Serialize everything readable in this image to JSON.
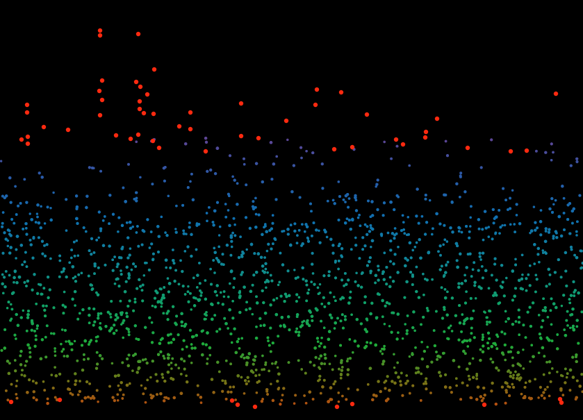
{
  "chart_data": {
    "type": "scatter",
    "title": "",
    "xlabel": "",
    "ylabel": "",
    "xlim": [
      0,
      839
    ],
    "ylim": [
      0,
      605
    ],
    "grid": false,
    "legend": "none",
    "background": "#000000",
    "color_scale": [
      {
        "stop": 0.0,
        "color": "#ff2a10"
      },
      {
        "stop": 0.1,
        "color": "#d82e3a"
      },
      {
        "stop": 0.2,
        "color": "#a63a6a"
      },
      {
        "stop": 0.3,
        "color": "#6e3e8e"
      },
      {
        "stop": 0.42,
        "color": "#2a5aa8"
      },
      {
        "stop": 0.52,
        "color": "#1070b0"
      },
      {
        "stop": 0.62,
        "color": "#10869a"
      },
      {
        "stop": 0.72,
        "color": "#10a068"
      },
      {
        "stop": 0.82,
        "color": "#1faa3a"
      },
      {
        "stop": 0.9,
        "color": "#6a7a18"
      },
      {
        "stop": 0.96,
        "color": "#b05210"
      },
      {
        "stop": 1.0,
        "color": "#ff2a10"
      }
    ],
    "highlight_points": [
      {
        "x": 144,
        "y": 44
      },
      {
        "x": 144,
        "y": 51
      },
      {
        "x": 199,
        "y": 49
      },
      {
        "x": 222,
        "y": 100
      },
      {
        "x": 147,
        "y": 116
      },
      {
        "x": 196,
        "y": 118
      },
      {
        "x": 202,
        "y": 125
      },
      {
        "x": 143,
        "y": 131
      },
      {
        "x": 212,
        "y": 136
      },
      {
        "x": 147,
        "y": 144
      },
      {
        "x": 201,
        "y": 146
      },
      {
        "x": 201,
        "y": 157
      },
      {
        "x": 39,
        "y": 151
      },
      {
        "x": 39,
        "y": 162
      },
      {
        "x": 144,
        "y": 166
      },
      {
        "x": 221,
        "y": 164
      },
      {
        "x": 207,
        "y": 163
      },
      {
        "x": 274,
        "y": 162
      },
      {
        "x": 347,
        "y": 149
      },
      {
        "x": 456,
        "y": 129
      },
      {
        "x": 491,
        "y": 133
      },
      {
        "x": 454,
        "y": 151
      },
      {
        "x": 528,
        "y": 165
      },
      {
        "x": 412,
        "y": 174
      },
      {
        "x": 629,
        "y": 171
      },
      {
        "x": 800,
        "y": 135
      },
      {
        "x": 63,
        "y": 183
      },
      {
        "x": 98,
        "y": 187
      },
      {
        "x": 258,
        "y": 182
      },
      {
        "x": 274,
        "y": 186
      },
      {
        "x": 167,
        "y": 195
      },
      {
        "x": 188,
        "y": 200
      },
      {
        "x": 199,
        "y": 194
      },
      {
        "x": 220,
        "y": 203
      },
      {
        "x": 229,
        "y": 213
      },
      {
        "x": 347,
        "y": 196
      },
      {
        "x": 372,
        "y": 199
      },
      {
        "x": 613,
        "y": 190
      },
      {
        "x": 612,
        "y": 198
      },
      {
        "x": 570,
        "y": 201
      },
      {
        "x": 580,
        "y": 208
      },
      {
        "x": 507,
        "y": 212
      },
      {
        "x": 481,
        "y": 215
      },
      {
        "x": 673,
        "y": 213
      },
      {
        "x": 735,
        "y": 218
      },
      {
        "x": 758,
        "y": 217
      },
      {
        "x": 31,
        "y": 201
      },
      {
        "x": 40,
        "y": 197
      },
      {
        "x": 40,
        "y": 207
      },
      {
        "x": 296,
        "y": 218
      },
      {
        "x": 342,
        "y": 583
      },
      {
        "x": 367,
        "y": 586
      },
      {
        "x": 485,
        "y": 586
      },
      {
        "x": 507,
        "y": 582
      },
      {
        "x": 697,
        "y": 583
      },
      {
        "x": 808,
        "y": 580
      },
      {
        "x": 806,
        "y": 575
      },
      {
        "x": 16,
        "y": 579
      },
      {
        "x": 86,
        "y": 576
      },
      {
        "x": 334,
        "y": 577
      }
    ]
  }
}
